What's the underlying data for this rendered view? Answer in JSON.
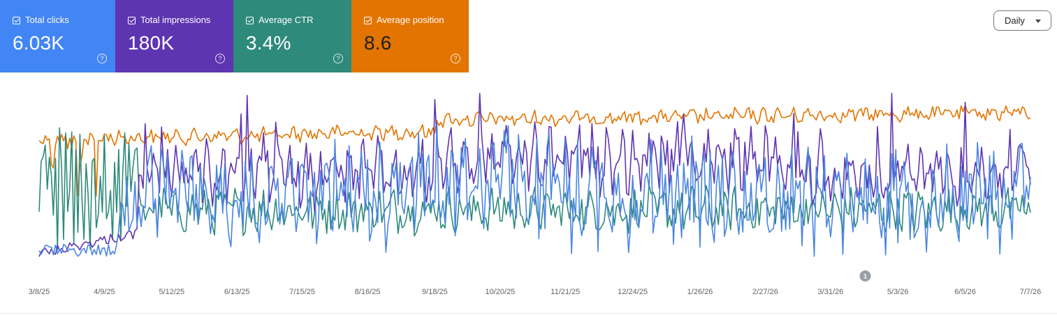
{
  "metrics": [
    {
      "label": "Total clicks",
      "value": "6.03K",
      "color": "#4285f4",
      "text_color": "#ffffff",
      "checked": true
    },
    {
      "label": "Total impressions",
      "value": "180K",
      "color": "#5e35b1",
      "text_color": "#ffffff",
      "checked": true
    },
    {
      "label": "Average CTR",
      "value": "3.4%",
      "color": "#2e8a7b",
      "text_color": "#ffffff",
      "checked": true
    },
    {
      "label": "Average position",
      "value": "8.6",
      "color": "#e37400",
      "text_color": "#202124",
      "checked": true
    }
  ],
  "help_icon": "?",
  "granularity": {
    "label": "Daily",
    "icon": "chevron-down-icon"
  },
  "chart_data": {
    "type": "line",
    "x_tick_labels": [
      "3/8/25",
      "4/9/25",
      "5/12/25",
      "6/13/25",
      "7/15/25",
      "8/16/25",
      "9/18/25",
      "10/20/25",
      "11/21/25",
      "12/24/25",
      "1/26/26",
      "2/27/26",
      "3/31/26",
      "5/3/26",
      "6/5/26",
      "7/7/26"
    ],
    "x_range": [
      "3/8/25",
      "7/7/26"
    ],
    "grid": false,
    "annotations": [
      {
        "label": "1",
        "date": "4/17/26"
      }
    ],
    "series": [
      {
        "name": "Total clicks",
        "color": "#4a86e0"
      },
      {
        "name": "Total impressions",
        "color": "#5e35b1"
      },
      {
        "name": "Average CTR",
        "color": "#2e8a7b"
      },
      {
        "name": "Average position",
        "color": "#e37400"
      }
    ]
  }
}
